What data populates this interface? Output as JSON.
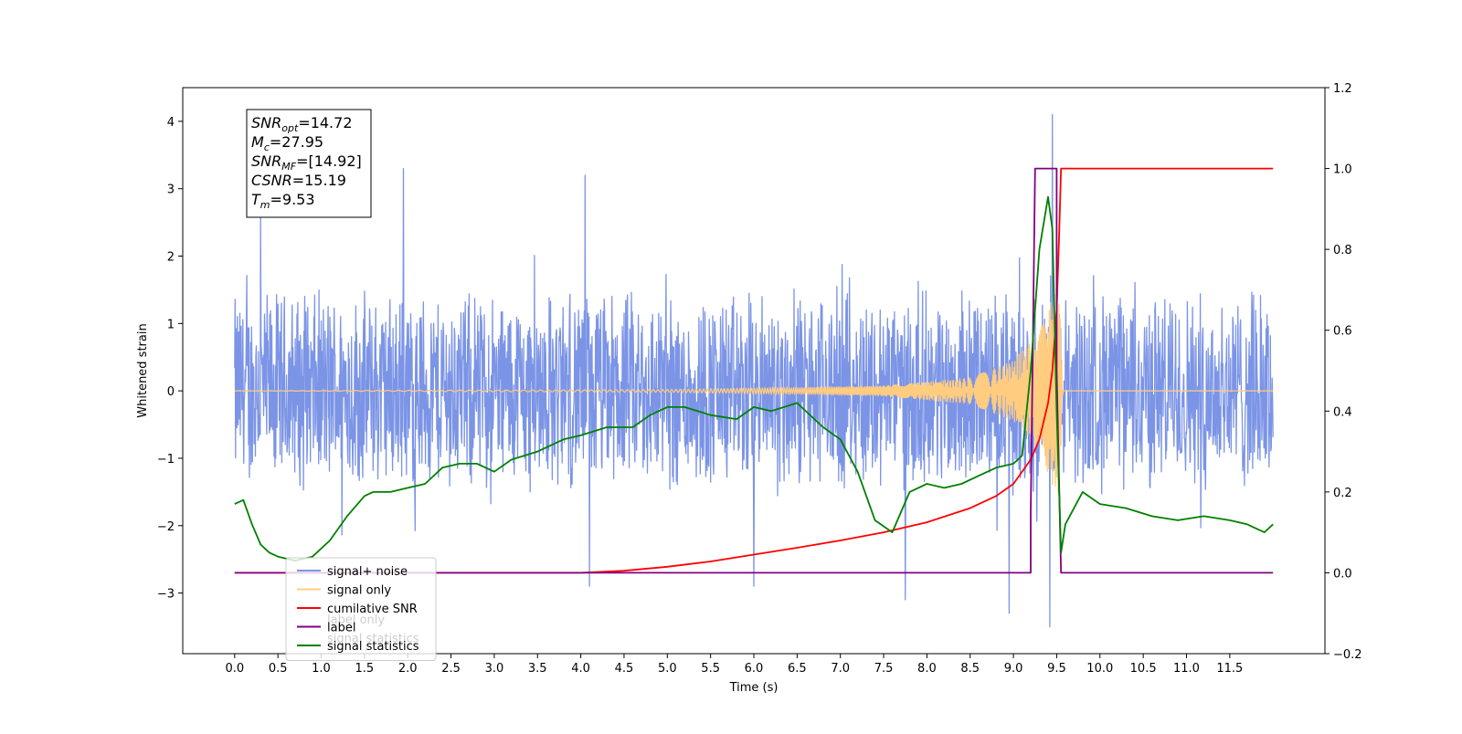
{
  "chart_data": {
    "type": "line",
    "xlabel": "Time (s)",
    "ylabel": "Whitened strain",
    "xlim": [
      -0.6,
      12.6
    ],
    "ylim_left": [
      -3.9,
      4.5
    ],
    "ylim_right": [
      -0.2,
      1.2
    ],
    "x_ticks": [
      "0.0",
      "0.5",
      "1.0",
      "1.5",
      "2.0",
      "2.5",
      "3.0",
      "3.5",
      "4.0",
      "4.5",
      "5.0",
      "5.5",
      "6.0",
      "6.5",
      "7.0",
      "7.5",
      "8.0",
      "8.5",
      "9.0",
      "9.5",
      "10.0",
      "10.5",
      "11.0",
      "11.5"
    ],
    "y_ticks_left": [
      "4",
      "3",
      "2",
      "1",
      "0",
      "−1",
      "−2",
      "−3"
    ],
    "y_ticks_right": [
      "1.2",
      "1.0",
      "0.8",
      "0.6",
      "0.4",
      "0.2",
      "0.0",
      "−0.2"
    ],
    "grid": false,
    "legend_position": "lower-left",
    "legend": [
      {
        "label": "signal+ noise",
        "color": "#7b94e6"
      },
      {
        "label": "signal only",
        "color": "#ffcc80"
      },
      {
        "label": "cumilative SNR",
        "color": "#ff0000"
      },
      {
        "label": "label",
        "color": "#800080"
      },
      {
        "label": "signal statistics",
        "color": "#008000"
      }
    ],
    "obscured_legend_text": [
      "label only",
      "signal statistics"
    ],
    "info_box": [
      {
        "base": "SNR",
        "sub": "opt",
        "value": "=14.72"
      },
      {
        "base": "M",
        "sub": "c",
        "value": "=27.95"
      },
      {
        "base": "SNR",
        "sub": "MF",
        "value": "=[14.92]"
      },
      {
        "base": "CSNR",
        "sub": "",
        "value": "=15.19"
      },
      {
        "base": "T",
        "sub": "m",
        "value": "=9.53"
      }
    ],
    "series": [
      {
        "name": "signal+ noise",
        "axis": "left",
        "color": "#7b94e6",
        "description": "noisy whitened strain, approx ±1.5 with spikes",
        "x_range": [
          0.0,
          12.0
        ],
        "typical_envelope": [
          -1.6,
          1.6
        ],
        "notable_peaks": [
          {
            "x": 0.3,
            "y": 2.6
          },
          {
            "x": 1.95,
            "y": 3.3
          },
          {
            "x": 4.05,
            "y": 3.2
          },
          {
            "x": 9.45,
            "y": 4.1
          },
          {
            "x": 9.42,
            "y": -3.5
          },
          {
            "x": 7.75,
            "y": -3.1
          },
          {
            "x": 8.95,
            "y": -3.3
          },
          {
            "x": 4.1,
            "y": -2.9
          },
          {
            "x": 6.0,
            "y": -2.9
          }
        ]
      },
      {
        "name": "signal only",
        "axis": "left",
        "color": "#ffcc80",
        "description": "chirp signal, amplitude grows toward merger near 9.5 s",
        "x_range": [
          0.0,
          12.0
        ],
        "amplitude_points": [
          [
            0.0,
            0.0
          ],
          [
            5.0,
            0.02
          ],
          [
            6.5,
            0.05
          ],
          [
            7.5,
            0.08
          ],
          [
            8.5,
            0.2
          ],
          [
            9.0,
            0.45
          ],
          [
            9.3,
            0.9
          ],
          [
            9.45,
            1.4
          ],
          [
            9.53,
            1.6
          ],
          [
            9.57,
            0.0
          ],
          [
            12.0,
            0.0
          ]
        ]
      },
      {
        "name": "cumilative SNR",
        "axis": "right",
        "color": "#ff0000",
        "x": [
          0.0,
          4.0,
          4.5,
          5.0,
          5.5,
          6.0,
          6.5,
          7.0,
          7.5,
          8.0,
          8.5,
          8.8,
          9.0,
          9.2,
          9.3,
          9.4,
          9.45,
          9.5,
          9.53,
          9.55,
          12.0
        ],
        "y": [
          0.0,
          0.0,
          0.005,
          0.015,
          0.028,
          0.045,
          0.062,
          0.08,
          0.1,
          0.125,
          0.16,
          0.19,
          0.22,
          0.28,
          0.33,
          0.42,
          0.5,
          0.65,
          0.85,
          1.0,
          1.0
        ]
      },
      {
        "name": "label",
        "axis": "right",
        "color": "#800080",
        "x": [
          0.0,
          9.2,
          9.2,
          9.25,
          9.5,
          9.5,
          9.55,
          12.0
        ],
        "y": [
          0.0,
          0.0,
          0.15,
          1.0,
          1.0,
          0.5,
          0.0,
          0.0
        ]
      },
      {
        "name": "signal statistics",
        "axis": "right",
        "color": "#008000",
        "x": [
          0.0,
          0.1,
          0.2,
          0.3,
          0.4,
          0.5,
          0.7,
          0.9,
          1.1,
          1.3,
          1.5,
          1.6,
          1.8,
          2.0,
          2.2,
          2.4,
          2.6,
          2.8,
          3.0,
          3.2,
          3.5,
          3.8,
          4.0,
          4.3,
          4.6,
          4.8,
          5.0,
          5.2,
          5.5,
          5.8,
          6.0,
          6.2,
          6.5,
          6.8,
          7.0,
          7.2,
          7.4,
          7.6,
          7.8,
          8.0,
          8.2,
          8.4,
          8.6,
          8.8,
          9.0,
          9.1,
          9.2,
          9.3,
          9.4,
          9.45,
          9.5,
          9.55,
          9.6,
          9.8,
          10.0,
          10.3,
          10.6,
          10.9,
          11.2,
          11.5,
          11.7,
          11.9,
          12.0
        ],
        "y": [
          0.17,
          0.18,
          0.12,
          0.07,
          0.05,
          0.04,
          0.03,
          0.04,
          0.08,
          0.14,
          0.19,
          0.2,
          0.2,
          0.21,
          0.22,
          0.26,
          0.27,
          0.27,
          0.25,
          0.28,
          0.3,
          0.33,
          0.34,
          0.36,
          0.36,
          0.39,
          0.41,
          0.41,
          0.39,
          0.38,
          0.41,
          0.4,
          0.42,
          0.36,
          0.33,
          0.25,
          0.13,
          0.1,
          0.2,
          0.22,
          0.21,
          0.22,
          0.24,
          0.26,
          0.27,
          0.29,
          0.5,
          0.8,
          0.93,
          0.85,
          0.4,
          0.05,
          0.12,
          0.2,
          0.17,
          0.16,
          0.14,
          0.13,
          0.14,
          0.13,
          0.12,
          0.1,
          0.12
        ]
      }
    ]
  }
}
